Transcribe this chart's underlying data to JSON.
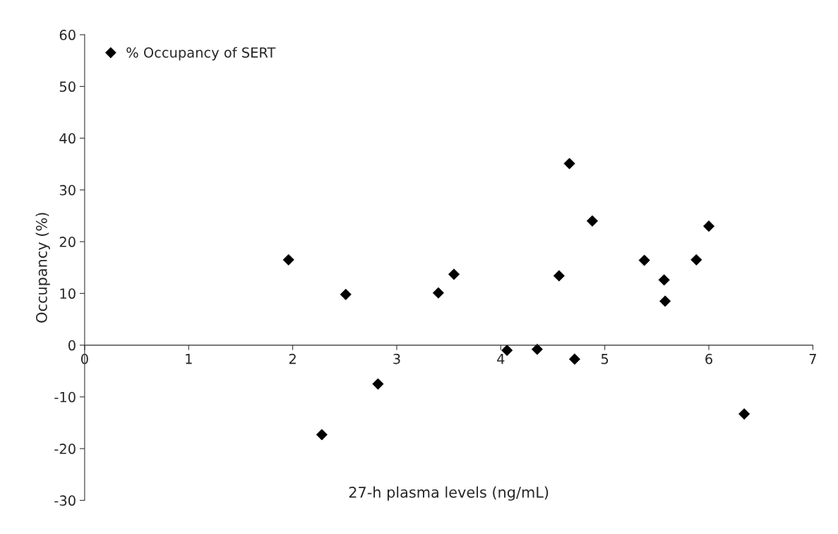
{
  "chart_data": {
    "type": "scatter",
    "xlabel": "27-h plasma levels (ng/mL)",
    "ylabel": "Occupancy (%)",
    "xlim": [
      0,
      7
    ],
    "ylim": [
      -30,
      60
    ],
    "xticks": [
      0,
      1,
      2,
      3,
      4,
      5,
      6,
      7
    ],
    "yticks": [
      -30,
      -20,
      -10,
      0,
      10,
      20,
      30,
      40,
      50,
      60
    ],
    "grid": false,
    "legend": "top left",
    "marker": "diamond",
    "series": [
      {
        "name": "% Occupancy of SERT",
        "color": "#000000",
        "x": [
          1.96,
          2.28,
          2.51,
          2.82,
          3.4,
          3.55,
          4.06,
          4.35,
          4.56,
          4.66,
          4.71,
          4.88,
          5.38,
          5.57,
          5.58,
          5.88,
          6.0,
          6.34
        ],
        "values": [
          16.5,
          -17.3,
          9.8,
          -7.5,
          10.1,
          13.7,
          -1.0,
          -0.8,
          13.4,
          35.1,
          -2.7,
          24.0,
          16.4,
          12.6,
          8.5,
          16.5,
          23.0,
          -13.3
        ]
      }
    ]
  }
}
